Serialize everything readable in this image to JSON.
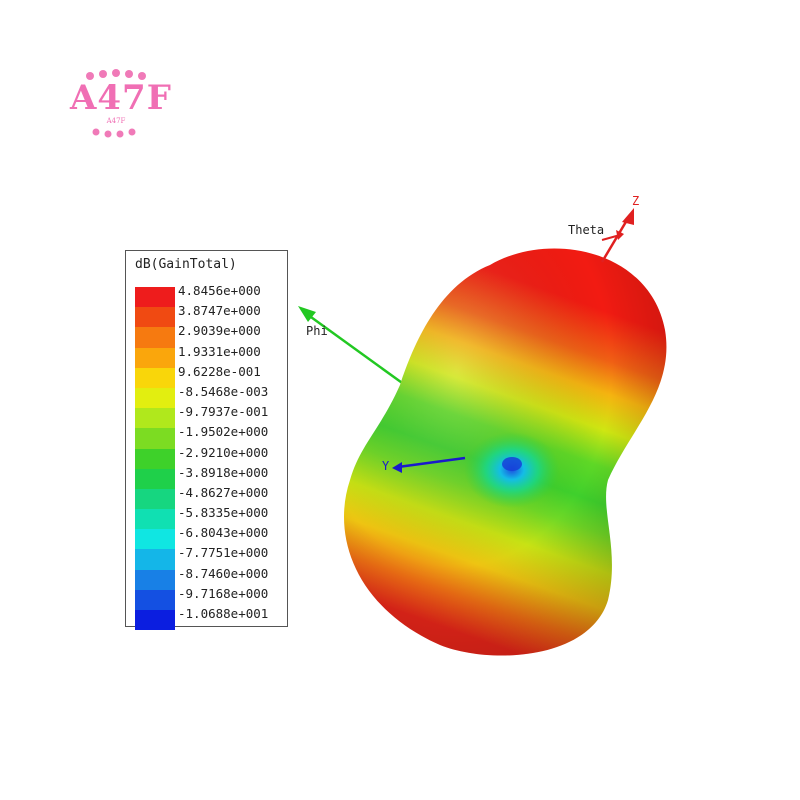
{
  "logo": {
    "text": "A47F",
    "subtext": "A47F"
  },
  "legend": {
    "title": "dB(GainTotal)",
    "entries": [
      {
        "label": "4.8456e+000",
        "color": "#ee1c1c"
      },
      {
        "label": "3.8747e+000",
        "color": "#f04a12"
      },
      {
        "label": "2.9039e+000",
        "color": "#f67a10"
      },
      {
        "label": "1.9331e+000",
        "color": "#faa60c"
      },
      {
        "label": "9.6228e-001",
        "color": "#f9d60a"
      },
      {
        "label": "-8.5468e-003",
        "color": "#e2ee10"
      },
      {
        "label": "-9.7937e-001",
        "color": "#b0e81c"
      },
      {
        "label": "-1.9502e+000",
        "color": "#7cdc22"
      },
      {
        "label": "-2.9210e+000",
        "color": "#3ed12a"
      },
      {
        "label": "-3.8918e+000",
        "color": "#1fd04a"
      },
      {
        "label": "-4.8627e+000",
        "color": "#16d680"
      },
      {
        "label": "-5.8335e+000",
        "color": "#10e0b2"
      },
      {
        "label": "-6.8043e+000",
        "color": "#10e6e2"
      },
      {
        "label": "-7.7751e+000",
        "color": "#14b6e8"
      },
      {
        "label": "-8.7460e+000",
        "color": "#1880e6"
      },
      {
        "label": "-9.7168e+000",
        "color": "#1450e2"
      },
      {
        "label": "-1.0688e+001",
        "color": "#0b1ee0"
      }
    ]
  },
  "axes": {
    "z": "Z",
    "theta": "Theta",
    "phi": "Phi",
    "y": "Y"
  },
  "colors": {
    "z_axis": "#e02020",
    "phi_axis": "#22c822",
    "y_axis": "#1a1acc",
    "logo": "#f06fb4"
  }
}
